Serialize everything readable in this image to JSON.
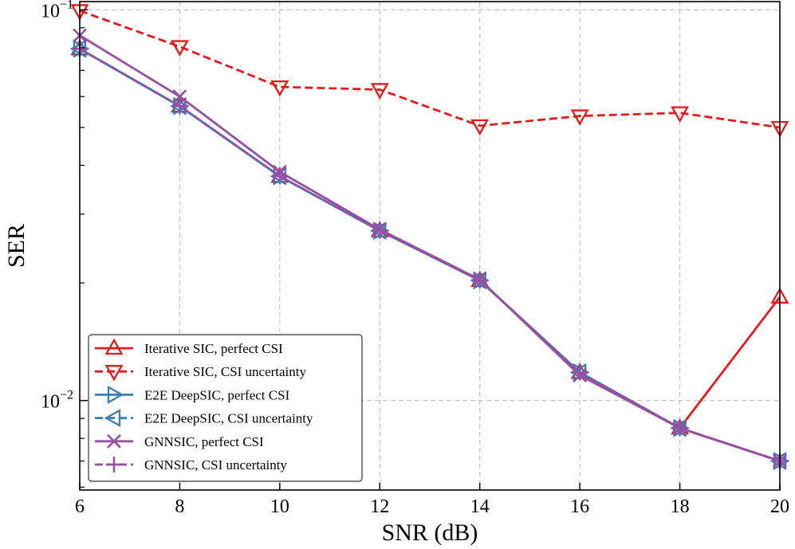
{
  "chart_data": {
    "type": "line",
    "xlabel": "SNR (dB)",
    "ylabel": "SER",
    "yscale": "log",
    "xlim": [
      6,
      20
    ],
    "ylim": [
      0.0059,
      0.105
    ],
    "grid": true,
    "legend_position": "lower-left",
    "x": [
      6,
      8,
      10,
      12,
      14,
      16,
      18,
      20
    ],
    "x_ticks": [
      "6",
      "8",
      "10",
      "12",
      "14",
      "16",
      "18",
      "20"
    ],
    "y_ticks": [
      {
        "base": "10",
        "exp": "−1",
        "value": 0.1
      },
      {
        "base": "10",
        "exp": "−2",
        "value": 0.01
      }
    ],
    "series": [
      {
        "name": "Iterative SIC, perfect CSI",
        "color": "#e41a1c",
        "dash": "solid",
        "marker": "triangle-up",
        "values": [
          0.0795,
          0.0567,
          0.0375,
          0.0272,
          0.0203,
          0.0118,
          0.0085,
          0.0184
        ]
      },
      {
        "name": "Iterative SIC, CSI uncertainty",
        "color": "#e41a1c",
        "dash": "dashed",
        "marker": "triangle-down",
        "values": [
          0.0995,
          0.0805,
          0.0635,
          0.0625,
          0.0505,
          0.0535,
          0.0545,
          0.05
        ]
      },
      {
        "name": "E2E DeepSIC, perfect CSI",
        "color": "#377eb8",
        "dash": "solid",
        "marker": "triangle-right",
        "values": [
          0.0795,
          0.0567,
          0.0375,
          0.0272,
          0.0203,
          0.0118,
          0.0085,
          0.007
        ]
      },
      {
        "name": "E2E DeepSIC, CSI uncertainty",
        "color": "#377eb8",
        "dash": "dashed",
        "marker": "triangle-left",
        "values": [
          0.0795,
          0.0567,
          0.0375,
          0.0272,
          0.0203,
          0.0118,
          0.0085,
          0.007
        ]
      },
      {
        "name": "GNNSIC, perfect CSI",
        "color": "#984ea3",
        "dash": "solid",
        "marker": "x",
        "values": [
          0.086,
          0.06,
          0.0385,
          0.0274,
          0.0204,
          0.0116,
          0.0085,
          0.007
        ]
      },
      {
        "name": "GNNSIC, CSI uncertainty",
        "color": "#984ea3",
        "dash": "dashed",
        "marker": "plus",
        "values": [
          0.0795,
          0.0567,
          0.0375,
          0.0272,
          0.0203,
          0.0118,
          0.0085,
          0.007
        ]
      }
    ]
  }
}
